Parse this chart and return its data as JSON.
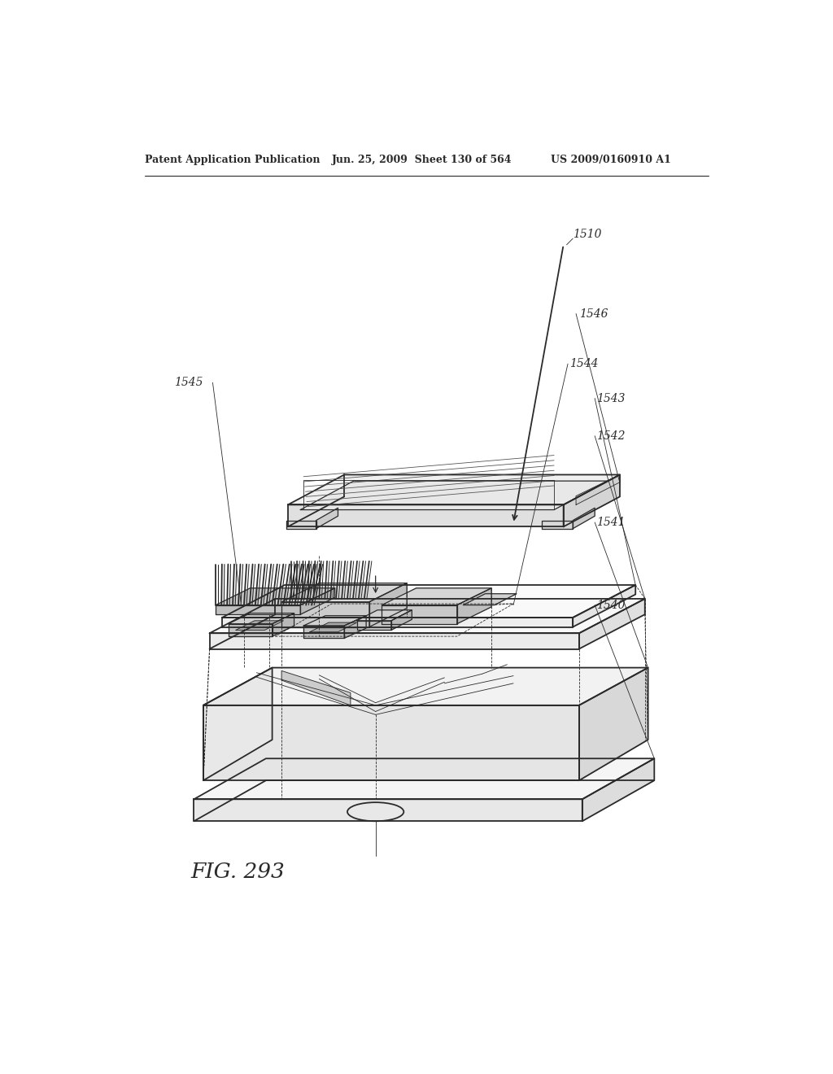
{
  "header_left": "Patent Application Publication",
  "header_mid": "Jun. 25, 2009  Sheet 130 of 564",
  "header_right": "US 2009/0160910 A1",
  "figure_label": "FIG. 293",
  "bg_color": "#ffffff",
  "line_color": "#2a2a2a",
  "label_1510": "1510",
  "label_1546": "1546",
  "label_1545": "1545",
  "label_1544": "1544",
  "label_1543": "1543",
  "label_1542": "1542",
  "label_1541": "1541",
  "label_1540": "1540"
}
